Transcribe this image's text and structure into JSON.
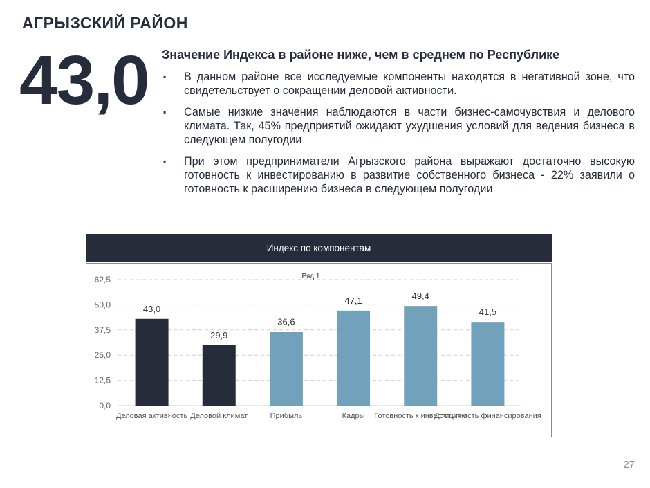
{
  "page": {
    "title": "АГРЫЗСКИЙ РАЙОН",
    "index_value": "43,0",
    "headline": "Значение Индекса в районе ниже, чем в среднем по Республике",
    "bullet_symbol": "▪",
    "bullets": [
      "В данном районе все исследуемые компоненты находятся в негативной зоне, что свидетельствует о сокращении деловой активности.",
      "Самые низкие значения наблюдаются в части бизнес-самочувствия и делового климата. Так, 45% предприятий ожидают ухудшения условий для ведения бизнеса в следующем полугодии",
      "При этом предприниматели Агрызского района выражают достаточно высокую готовность к инвестированию в развитие собственного бизнеса - 22% заявили о готовность к расширению бизнеса в следующем полугодии"
    ],
    "page_number": "27"
  },
  "chart_data": {
    "type": "bar",
    "title": "Индекс по компонентам",
    "legend": "Ряд 1",
    "legend_position": "top",
    "categories": [
      "Деловая активность",
      "Деловой климат",
      "Прибыль",
      "Кадры",
      "Готовность к инвестициям",
      "Доступность финансирования"
    ],
    "series": [
      {
        "name": "Ряд 1",
        "values": [
          43.0,
          29.9,
          36.6,
          47.1,
          49.4,
          41.5
        ],
        "labels": [
          "43,0",
          "29,9",
          "36,6",
          "47,1",
          "49,4",
          "41,5"
        ]
      }
    ],
    "bar_colors": [
      "#262c3a",
      "#262c3a",
      "#72a1bc",
      "#72a1bc",
      "#72a1bc",
      "#72a1bc"
    ],
    "ylim": [
      0,
      62.5
    ],
    "yticks": [
      0,
      12.5,
      25,
      37.5,
      50,
      62.5
    ],
    "ytick_labels": [
      "0,0",
      "12,5",
      "25,0",
      "37,5",
      "50,0",
      "62,5"
    ],
    "grid": true,
    "xlabel": "",
    "ylabel": ""
  }
}
